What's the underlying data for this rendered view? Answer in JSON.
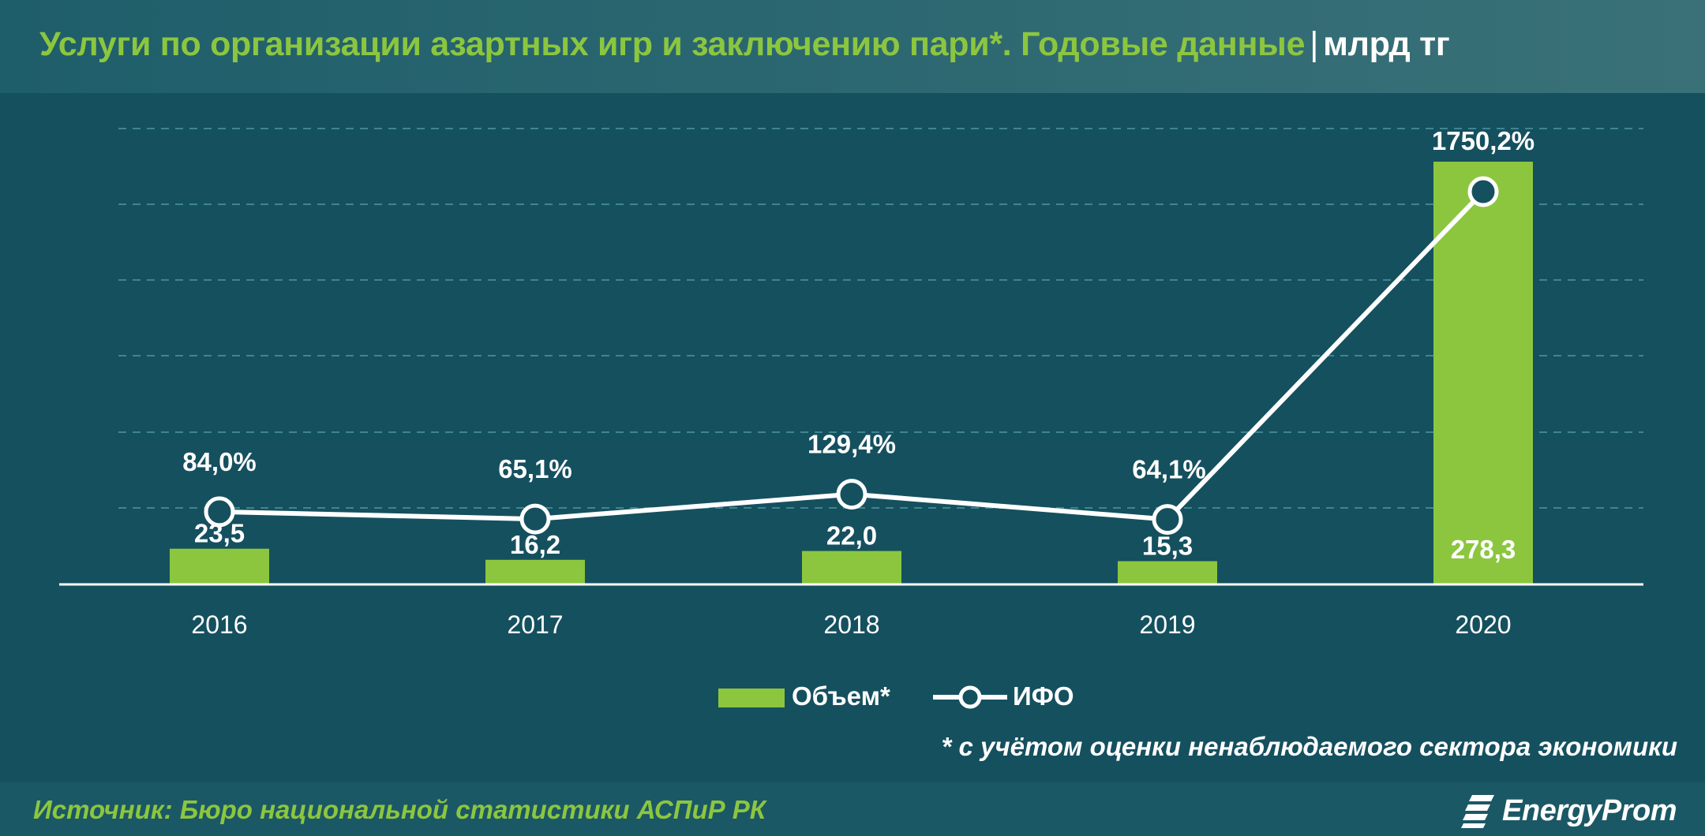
{
  "header": {
    "title": "Услуги по организации азартных игр и заключению пари*. Годовые данные",
    "separator": "|",
    "unit": "млрд тг"
  },
  "chart_data": {
    "type": "bar",
    "categories": [
      "2016",
      "2017",
      "2018",
      "2019",
      "2020"
    ],
    "series": [
      {
        "name": "Объем*",
        "type": "bar",
        "values": [
          23.5,
          16.2,
          22.0,
          15.3,
          278.3
        ],
        "labels": [
          "23,5",
          "16,2",
          "22,0",
          "15,3",
          "278,3"
        ],
        "color": "#8cc63f"
      },
      {
        "name": "ИФО",
        "type": "line",
        "values": [
          84.0,
          65.1,
          129.4,
          64.1,
          1750.2
        ],
        "labels": [
          "84,0%",
          "65,1%",
          "129,4%",
          "64,1%",
          "1750,2%"
        ],
        "color": "#ffffff"
      }
    ],
    "grid": true,
    "legend": "bottom-center"
  },
  "legend": {
    "bar_label": "Объем*",
    "line_label": "ИФО"
  },
  "footnote": "* с учётом оценки ненаблюдаемого сектора экономики",
  "source": "Источник: Бюро национальной статистики АСПиР РК",
  "logo": {
    "text": "EnergyProm"
  },
  "colors": {
    "background": "#15505f",
    "accent": "#8cc63f",
    "header": "#2e6a73"
  }
}
